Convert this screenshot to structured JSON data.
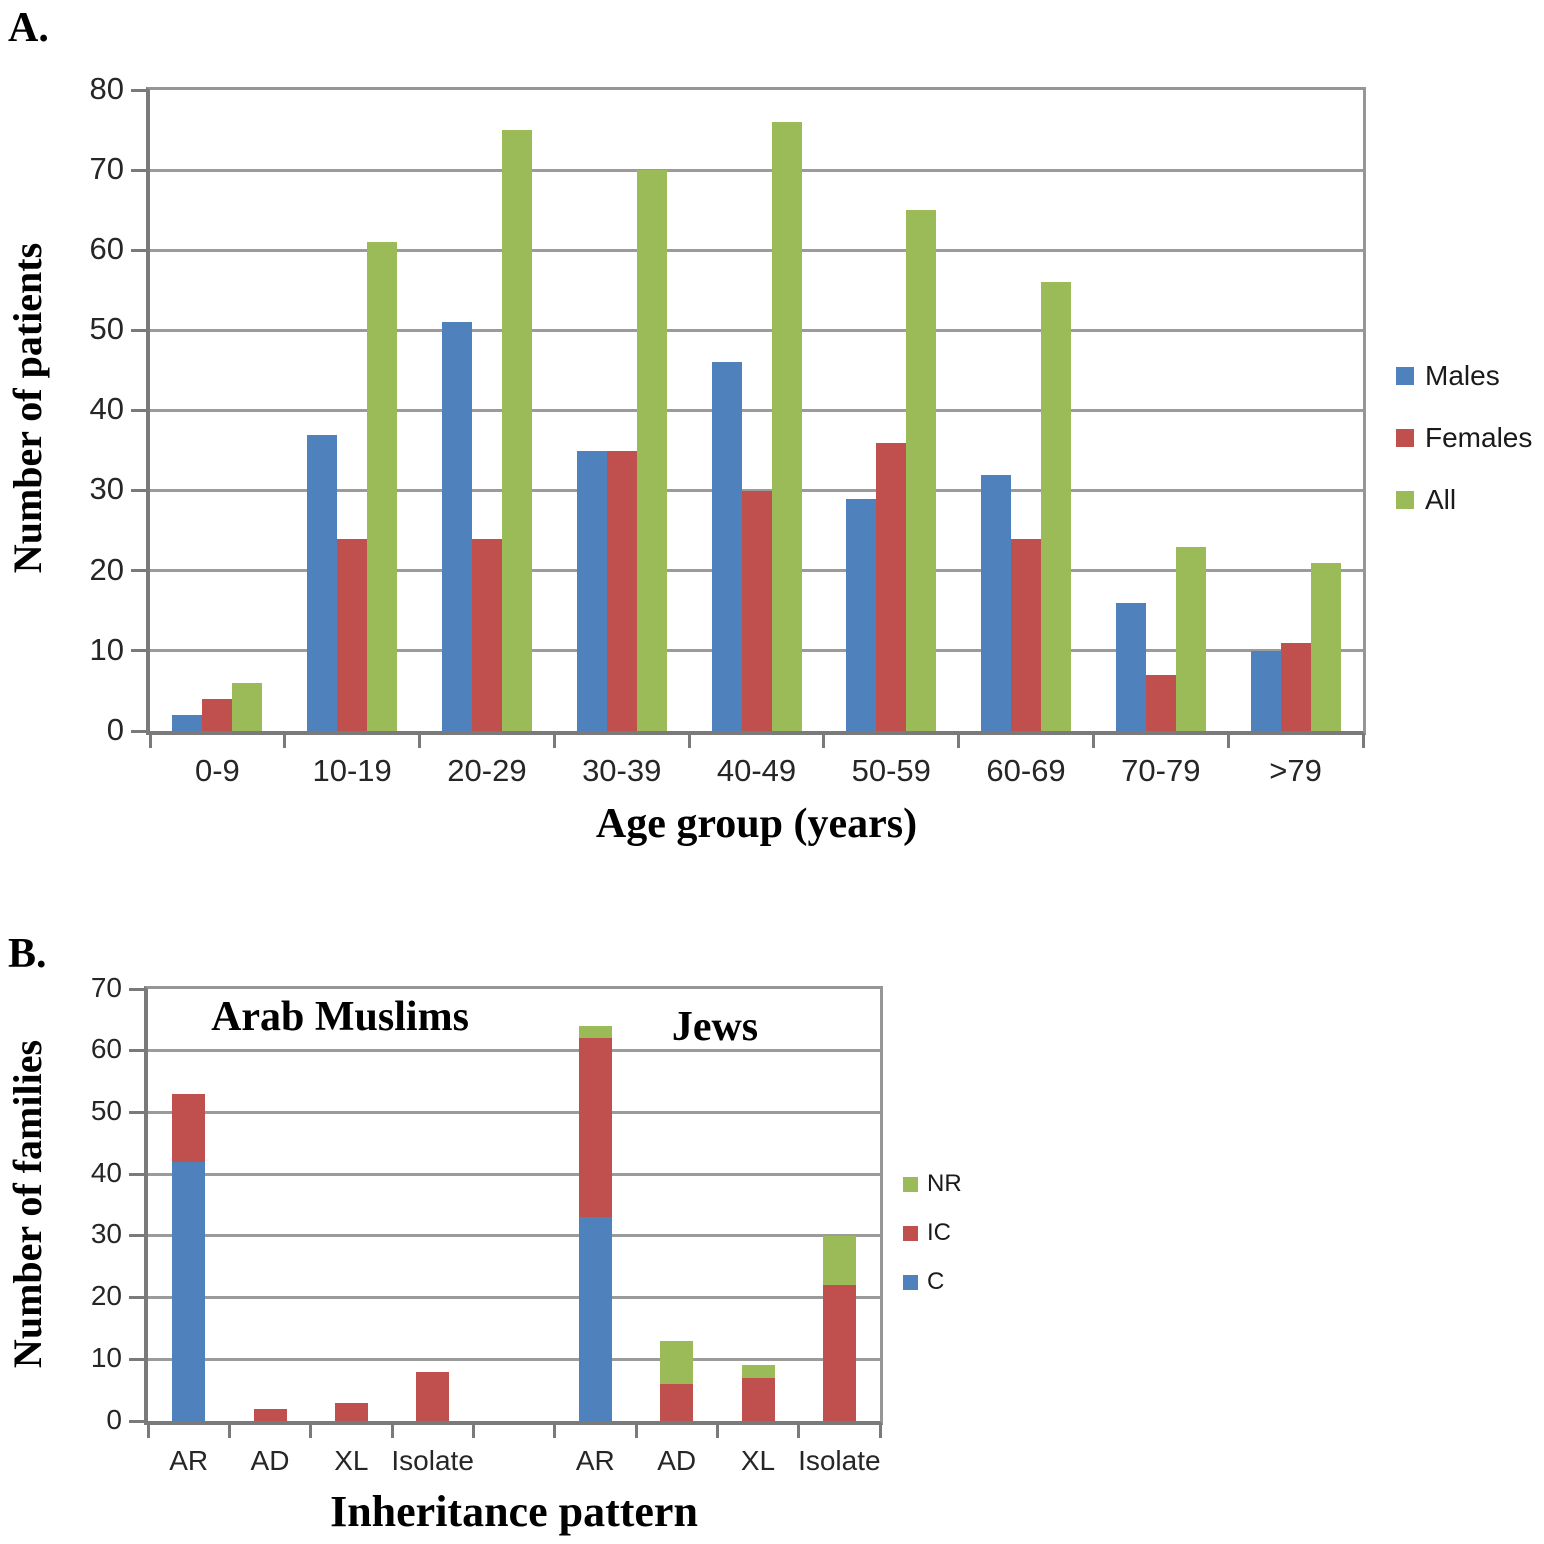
{
  "figure": {
    "panels": [
      {
        "label": "A."
      },
      {
        "label": "B."
      }
    ]
  },
  "colors": {
    "blue": "#4F81BD",
    "red": "#C0504D",
    "green": "#9BBB59",
    "gridline": "#9B9B9B",
    "axis": "#7A7A7A"
  },
  "chart_data": [
    {
      "type": "bar",
      "panel": "A",
      "categories": [
        "0-9",
        "10-19",
        "20-29",
        "30-39",
        "40-49",
        "50-59",
        "60-69",
        "70-79",
        ">79"
      ],
      "series": [
        {
          "name": "Males",
          "color": "#4F81BD",
          "values": [
            2,
            37,
            51,
            35,
            46,
            29,
            32,
            16,
            10
          ]
        },
        {
          "name": "Females",
          "color": "#C0504D",
          "values": [
            4,
            24,
            24,
            35,
            30,
            36,
            24,
            7,
            11
          ]
        },
        {
          "name": "All",
          "color": "#9BBB59",
          "values": [
            6,
            61,
            75,
            70,
            76,
            65,
            56,
            23,
            21
          ]
        }
      ],
      "xlabel": "Age group (years)",
      "ylabel": "Number of patients",
      "ylim": [
        0,
        80
      ],
      "ytick_step": 10,
      "yticks": [
        0,
        10,
        20,
        30,
        40,
        50,
        60,
        70,
        80
      ],
      "grid": true,
      "legend_position": "right",
      "legend_order": [
        "Males",
        "Females",
        "All"
      ]
    },
    {
      "type": "bar-stacked",
      "panel": "B",
      "categories": [
        "AR",
        "AD",
        "XL",
        "Isolate",
        "",
        "AR",
        "AD",
        "XL",
        "Isolate"
      ],
      "group_annotations": [
        "Arab Muslims",
        "Jews"
      ],
      "series": [
        {
          "name": "C",
          "color": "#4F81BD",
          "values": [
            42,
            0,
            0,
            0,
            0,
            33,
            0,
            0,
            0
          ]
        },
        {
          "name": "IC",
          "color": "#C0504D",
          "values": [
            11,
            2,
            3,
            8,
            0,
            29,
            6,
            7,
            22
          ]
        },
        {
          "name": "NR",
          "color": "#9BBB59",
          "values": [
            0,
            0,
            0,
            0,
            0,
            2,
            7,
            2,
            8
          ]
        }
      ],
      "stack_totals": [
        53,
        2,
        3,
        8,
        0,
        64,
        13,
        9,
        30
      ],
      "xlabel": "Inheritance pattern",
      "ylabel": "Number of families",
      "ylim": [
        0,
        70
      ],
      "ytick_step": 10,
      "yticks": [
        0,
        10,
        20,
        30,
        40,
        50,
        60,
        70
      ],
      "grid": true,
      "legend_position": "right",
      "legend_order": [
        "NR",
        "IC",
        "C"
      ]
    }
  ]
}
